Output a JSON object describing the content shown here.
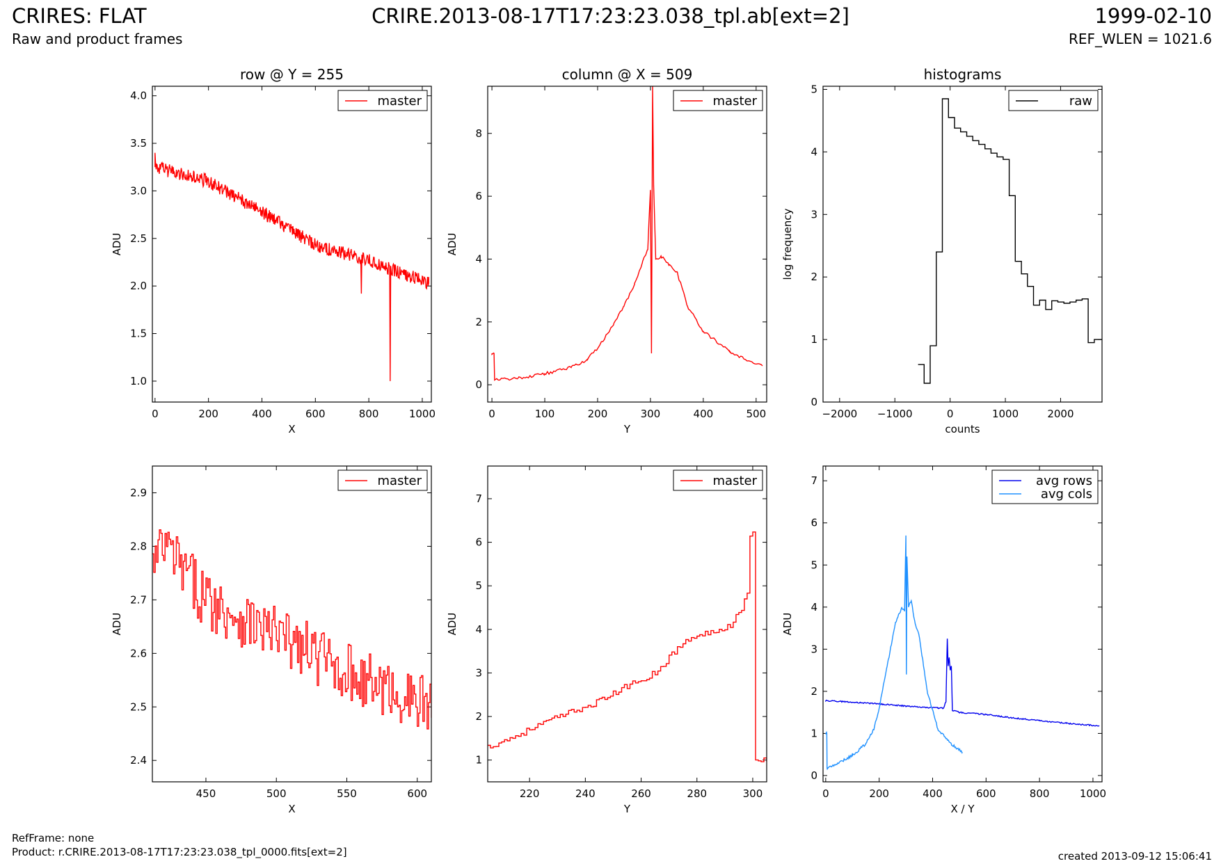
{
  "header": {
    "title": "CRIRES: FLAT",
    "subtitle": "Raw and product frames",
    "file": "CRIRE.2013-08-17T17:23:23.038_tpl.ab[ext=2]",
    "date": "1999-02-10",
    "ref_wlen": "REF_WLEN = 1021.6"
  },
  "footer": {
    "refframe": "RefFrame: none",
    "product": "Product: r.CRIRE.2013-08-17T17:23:23.038_tpl_0000.fits[ext=2]",
    "created": "created 2013-09-12 15:06:41"
  },
  "colors": {
    "master": "#ff0000",
    "raw": "#000000",
    "avg_rows": "#0000ee",
    "avg_cols": "#1e90ff"
  },
  "chart_data": [
    {
      "id": "row",
      "type": "line",
      "title": "row @ Y = 255",
      "xlabel": "X",
      "ylabel": "ADU",
      "xlim": [
        -10,
        1034
      ],
      "ylim": [
        0.78,
        4.1
      ],
      "xticks": [
        0,
        200,
        400,
        600,
        800,
        1000
      ],
      "yticks": [
        1.0,
        1.5,
        2.0,
        2.5,
        3.0,
        3.5,
        4.0
      ],
      "ytick_decimals": 1,
      "legend": "top-right",
      "series": [
        {
          "name": "master",
          "style": "noisy-trend",
          "points": [
            [
              0,
              3.25
            ],
            [
              200,
              3.1
            ],
            [
              400,
              2.78
            ],
            [
              600,
              2.43
            ],
            [
              800,
              2.27
            ],
            [
              1024,
              2.03
            ]
          ],
          "noise": 0.07,
          "step": 2,
          "spikes": [
            [
              0,
              3.4
            ],
            [
              772,
              1.92
            ],
            [
              880,
              1.0
            ]
          ]
        }
      ]
    },
    {
      "id": "column",
      "type": "line",
      "title": "column @ X = 509",
      "xlabel": "Y",
      "ylabel": "ADU",
      "xlim": [
        -8,
        520
      ],
      "ylim": [
        -0.55,
        9.5
      ],
      "xticks": [
        0,
        100,
        200,
        300,
        400,
        500
      ],
      "yticks": [
        0,
        2,
        4,
        6,
        8
      ],
      "ytick_decimals": 0,
      "legend": "top-right",
      "series": [
        {
          "name": "master",
          "style": "noisy-trend",
          "points": [
            [
              0,
              1.0
            ],
            [
              4,
              1.0
            ],
            [
              5,
              0.15
            ],
            [
              50,
              0.22
            ],
            [
              100,
              0.35
            ],
            [
              150,
              0.55
            ],
            [
              180,
              0.8
            ],
            [
              200,
              1.15
            ],
            [
              230,
              1.9
            ],
            [
              250,
              2.5
            ],
            [
              270,
              3.2
            ],
            [
              285,
              3.9
            ],
            [
              295,
              4.3
            ],
            [
              300,
              6.2
            ],
            [
              302,
              1.0
            ],
            [
              304,
              9.5
            ],
            [
              306,
              6.3
            ],
            [
              310,
              4.0
            ],
            [
              320,
              4.1
            ],
            [
              335,
              3.8
            ],
            [
              350,
              3.6
            ],
            [
              370,
              2.5
            ],
            [
              400,
              1.7
            ],
            [
              450,
              1.05
            ],
            [
              480,
              0.8
            ],
            [
              512,
              0.6
            ]
          ],
          "noise": 0.05,
          "step": 3,
          "spikes": []
        }
      ]
    },
    {
      "id": "hist",
      "type": "line",
      "title": "histograms",
      "xlabel": "counts",
      "ylabel": "log frequency",
      "xlim": [
        -2300,
        2750
      ],
      "ylim": [
        0,
        5.05
      ],
      "xticks": [
        -2000,
        -1000,
        0,
        1000,
        2000
      ],
      "yticks": [
        0,
        1,
        2,
        3,
        4,
        5
      ],
      "ytick_decimals": 0,
      "legend": "top-right",
      "series": [
        {
          "name": "raw",
          "style": "steps-post",
          "x": [
            -580,
            -470,
            -360,
            -250,
            -140,
            -30,
            80,
            190,
            300,
            410,
            520,
            630,
            740,
            850,
            960,
            1070,
            1180,
            1290,
            1400,
            1510,
            1620,
            1730,
            1840,
            1950,
            2060,
            2170,
            2280,
            2390,
            2500,
            2610,
            2750
          ],
          "y": [
            0.6,
            0.3,
            0.9,
            2.4,
            4.85,
            4.55,
            4.38,
            4.32,
            4.25,
            4.18,
            4.12,
            4.05,
            3.98,
            3.92,
            3.88,
            3.3,
            2.25,
            2.05,
            1.85,
            1.55,
            1.63,
            1.48,
            1.62,
            1.6,
            1.58,
            1.6,
            1.63,
            1.65,
            0.95,
            1.0,
            1.0
          ]
        }
      ]
    },
    {
      "id": "row-zoom",
      "type": "line",
      "xlabel": "X",
      "ylabel": "ADU",
      "xlim": [
        412,
        610
      ],
      "ylim": [
        2.36,
        2.95
      ],
      "xticks": [
        450,
        500,
        550,
        600
      ],
      "yticks": [
        2.4,
        2.5,
        2.6,
        2.7,
        2.8,
        2.9
      ],
      "ytick_decimals": 1,
      "legend": "top-right",
      "series": [
        {
          "name": "master",
          "style": "steps-noisy",
          "points": [
            [
              412,
              2.76
            ],
            [
              420,
              2.8
            ],
            [
              450,
              2.7
            ],
            [
              480,
              2.66
            ],
            [
              510,
              2.62
            ],
            [
              540,
              2.58
            ],
            [
              570,
              2.54
            ],
            [
              610,
              2.5
            ]
          ],
          "noise": 0.055,
          "step": 1,
          "spikes": []
        }
      ]
    },
    {
      "id": "column-zoom",
      "type": "line",
      "xlabel": "Y",
      "ylabel": "ADU",
      "xlim": [
        205,
        305
      ],
      "ylim": [
        0.5,
        7.75
      ],
      "xticks": [
        220,
        240,
        260,
        280,
        300
      ],
      "yticks": [
        1,
        2,
        3,
        4,
        5,
        6,
        7
      ],
      "ytick_decimals": 0,
      "legend": "top-right",
      "series": [
        {
          "name": "master",
          "style": "steps-noisy",
          "points": [
            [
              205,
              1.3
            ],
            [
              215,
              1.55
            ],
            [
              225,
              1.85
            ],
            [
              235,
              2.1
            ],
            [
              245,
              2.35
            ],
            [
              255,
              2.7
            ],
            [
              265,
              3.0
            ],
            [
              275,
              3.7
            ],
            [
              285,
              3.95
            ],
            [
              292,
              4.1
            ],
            [
              296,
              4.5
            ],
            [
              298,
              4.8
            ],
            [
              299,
              6.2
            ],
            [
              300.5,
              6.2
            ],
            [
              300.6,
              1.0
            ],
            [
              305,
              1.0
            ]
          ],
          "noise": 0.07,
          "step": 1,
          "spikes": []
        }
      ]
    },
    {
      "id": "avg",
      "type": "line",
      "xlabel": "X / Y",
      "ylabel": "ADU",
      "xlim": [
        -10,
        1034
      ],
      "ylim": [
        -0.15,
        7.35
      ],
      "xticks": [
        0,
        200,
        400,
        600,
        800,
        1000
      ],
      "yticks": [
        0,
        1,
        2,
        3,
        4,
        5,
        6,
        7
      ],
      "ytick_decimals": 0,
      "legend": "top-right",
      "series": [
        {
          "name": "avg rows",
          "style": "noisy-trend",
          "points": [
            [
              0,
              1.78
            ],
            [
              100,
              1.74
            ],
            [
              200,
              1.7
            ],
            [
              300,
              1.65
            ],
            [
              420,
              1.6
            ],
            [
              440,
              1.6
            ],
            [
              450,
              1.75
            ],
            [
              455,
              3.25
            ],
            [
              458,
              2.6
            ],
            [
              462,
              2.8
            ],
            [
              466,
              2.5
            ],
            [
              470,
              2.6
            ],
            [
              474,
              1.55
            ],
            [
              500,
              1.5
            ],
            [
              600,
              1.45
            ],
            [
              700,
              1.37
            ],
            [
              800,
              1.3
            ],
            [
              900,
              1.24
            ],
            [
              1024,
              1.18
            ]
          ],
          "noise": 0.015,
          "step": 3,
          "spikes": []
        },
        {
          "name": "avg cols",
          "style": "noisy-trend",
          "points": [
            [
              0,
              1.0
            ],
            [
              4,
              1.0
            ],
            [
              5,
              0.17
            ],
            [
              50,
              0.3
            ],
            [
              100,
              0.48
            ],
            [
              150,
              0.75
            ],
            [
              180,
              1.1
            ],
            [
              200,
              1.6
            ],
            [
              230,
              2.6
            ],
            [
              260,
              3.6
            ],
            [
              285,
              4.0
            ],
            [
              295,
              3.9
            ],
            [
              300,
              5.7
            ],
            [
              302,
              2.4
            ],
            [
              304,
              5.2
            ],
            [
              310,
              4.0
            ],
            [
              320,
              4.15
            ],
            [
              335,
              3.6
            ],
            [
              350,
              3.3
            ],
            [
              380,
              2.0
            ],
            [
              420,
              1.1
            ],
            [
              470,
              0.75
            ],
            [
              512,
              0.55
            ]
          ],
          "noise": 0.03,
          "step": 3,
          "spikes": []
        }
      ]
    }
  ]
}
